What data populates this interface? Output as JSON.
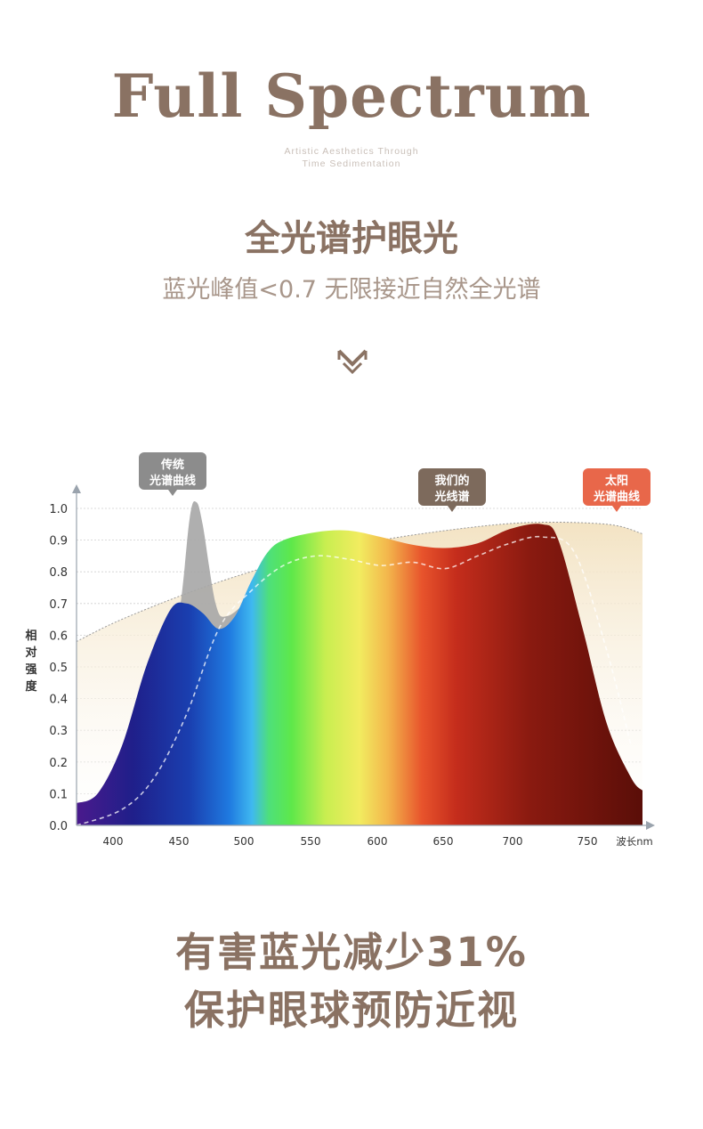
{
  "hero": {
    "title": "Full Spectrum",
    "tagline_1": "Artistic Aesthetics Through",
    "tagline_2": "Time Sedimentation"
  },
  "headline": "全光谱护眼光",
  "subheadline": "蓝光峰值<0.7 无限接近自然全光谱",
  "bottom": {
    "line1": "有害蓝光减少31%",
    "line2": "保护眼球预防近视"
  },
  "colors": {
    "brown": "#8a7263",
    "sun_tag": "#e8674a",
    "ours_tag": "#7d6a5c",
    "traditional_tag": "#8c8c8c",
    "sun_fill": "#f3e3c3"
  },
  "chart_data": {
    "type": "area",
    "ylabel": [
      "相",
      "对",
      "强",
      "度"
    ],
    "xunit": "波长nm",
    "xlim": [
      372,
      722
    ],
    "ylim": [
      0,
      1.0
    ],
    "xticks": [
      400,
      450,
      500,
      550,
      600,
      650,
      700,
      750
    ],
    "yticks": [
      "0.0",
      "0.1",
      "0.2",
      "0.3",
      "0.4",
      "0.5",
      "0.6",
      "0.7",
      "0.8",
      "0.9",
      "1.0"
    ],
    "grid": true,
    "series": [
      {
        "name": "太阳光谱曲线",
        "label_lines": [
          "太阳",
          "光谱曲线"
        ],
        "x": [
          372,
          400,
          450,
          500,
          550,
          600,
          650,
          700,
          722
        ],
        "y": [
          0.58,
          0.65,
          0.75,
          0.83,
          0.89,
          0.93,
          0.955,
          0.95,
          0.92
        ]
      },
      {
        "name": "传统光谱曲线",
        "label_lines": [
          "传统",
          "光谱曲线"
        ],
        "x": [
          372,
          400,
          420,
          435,
          442,
          446,
          450,
          458,
          465,
          480,
          500,
          520,
          550,
          580,
          600,
          610
        ],
        "y": [
          0.01,
          0.08,
          0.25,
          0.65,
          0.97,
          1.02,
          0.95,
          0.7,
          0.66,
          0.72,
          0.82,
          0.85,
          0.82,
          0.84,
          0.8,
          0.78
        ]
      },
      {
        "name": "我们的光线谱",
        "label_lines": [
          "我们的",
          "光线谱"
        ],
        "x": [
          372,
          385,
          400,
          415,
          430,
          440,
          450,
          460,
          470,
          480,
          490,
          500,
          520,
          540,
          560,
          580,
          600,
          620,
          640,
          660,
          670,
          685,
          700,
          715,
          722
        ],
        "y": [
          0.07,
          0.1,
          0.25,
          0.5,
          0.68,
          0.7,
          0.67,
          0.62,
          0.66,
          0.77,
          0.86,
          0.9,
          0.925,
          0.93,
          0.91,
          0.885,
          0.875,
          0.89,
          0.935,
          0.95,
          0.9,
          0.62,
          0.32,
          0.15,
          0.11
        ]
      },
      {
        "name": "我们的光线谱（虚线）",
        "x": [
          372,
          400,
          420,
          440,
          460,
          480,
          500,
          520,
          540,
          560,
          580,
          600,
          620,
          640,
          660,
          680,
          700,
          715
        ],
        "y": [
          0.0,
          0.05,
          0.15,
          0.35,
          0.62,
          0.74,
          0.82,
          0.85,
          0.84,
          0.82,
          0.83,
          0.81,
          0.85,
          0.89,
          0.91,
          0.86,
          0.55,
          0.25
        ]
      }
    ]
  }
}
